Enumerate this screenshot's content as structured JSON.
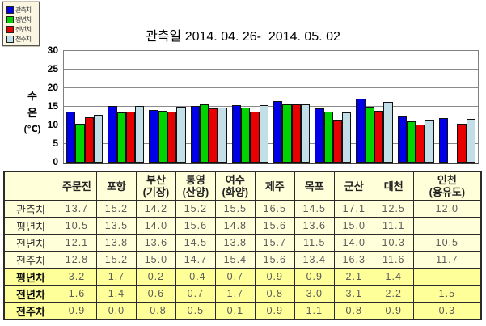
{
  "title": "관측일 2014. 04. 26-  2014. 05. 02",
  "y_axis": {
    "label_lines": [
      "수",
      "온",
      "(℃)"
    ],
    "ticks": [
      0,
      5,
      10,
      15,
      20,
      25,
      30
    ]
  },
  "legend": [
    {
      "label": "관측치",
      "color": "#0000e8"
    },
    {
      "label": "평년치",
      "color": "#00d400"
    },
    {
      "label": "전년치",
      "color": "#e80000"
    },
    {
      "label": "전주치",
      "color": "#c2dfe8"
    }
  ],
  "chart_data": {
    "type": "bar",
    "title": "관측일 2014. 04. 26-  2014. 05. 02",
    "ylabel": "수온(℃)",
    "ylim": [
      0,
      30
    ],
    "grid": true,
    "legend_position": "top-left",
    "categories": [
      "주문진",
      "포항",
      "부산(기장)",
      "통영(산양)",
      "여수(화양)",
      "제주",
      "목포",
      "군산",
      "대천",
      "인천(용유도)"
    ],
    "series": [
      {
        "name": "관측치",
        "color": "#0000e8",
        "values": [
          13.7,
          15.2,
          14.2,
          15.2,
          15.5,
          16.5,
          14.5,
          17.1,
          12.5,
          12.0
        ]
      },
      {
        "name": "평년치",
        "color": "#00d400",
        "values": [
          10.5,
          13.5,
          14.0,
          15.6,
          14.8,
          15.6,
          13.6,
          15.0,
          11.1,
          null
        ]
      },
      {
        "name": "전년치",
        "color": "#e80000",
        "values": [
          12.1,
          13.8,
          13.6,
          14.5,
          13.8,
          15.7,
          11.5,
          14.0,
          10.3,
          10.5
        ]
      },
      {
        "name": "전주치",
        "color": "#c2dfe8",
        "values": [
          12.8,
          15.2,
          15.0,
          14.7,
          15.4,
          15.6,
          13.4,
          16.3,
          11.6,
          11.7
        ]
      }
    ]
  },
  "table": {
    "corner": "",
    "columns": [
      "주문진",
      "포항",
      "부산\n(기장)",
      "통영\n(산양)",
      "여수\n(화양)",
      "제주",
      "목포",
      "군산",
      "대천",
      "인천\n(용유도)"
    ],
    "rows": [
      {
        "label": "관측치",
        "bold": false,
        "values": [
          "13.7",
          "15.2",
          "14.2",
          "15.2",
          "15.5",
          "16.5",
          "14.5",
          "17.1",
          "12.5",
          "12.0"
        ]
      },
      {
        "label": "평년치",
        "bold": false,
        "values": [
          "10.5",
          "13.5",
          "14.0",
          "15.6",
          "14.8",
          "15.6",
          "13.6",
          "15.0",
          "11.1",
          ""
        ]
      },
      {
        "label": "전년치",
        "bold": false,
        "values": [
          "12.1",
          "13.8",
          "13.6",
          "14.5",
          "13.8",
          "15.7",
          "11.5",
          "14.0",
          "10.3",
          "10.5"
        ]
      },
      {
        "label": "전주치",
        "bold": false,
        "values": [
          "12.8",
          "15.2",
          "15.0",
          "14.7",
          "15.4",
          "15.6",
          "13.4",
          "16.3",
          "11.6",
          "11.7"
        ]
      },
      {
        "label": "평년차",
        "bold": true,
        "values": [
          "3.2",
          "1.7",
          "0.2",
          "-0.4",
          "0.7",
          "0.9",
          "0.9",
          "2.1",
          "1.4",
          ""
        ]
      },
      {
        "label": "전년차",
        "bold": true,
        "values": [
          "1.6",
          "1.4",
          "0.6",
          "0.7",
          "1.7",
          "0.8",
          "3.0",
          "3.1",
          "2.2",
          "1.5"
        ]
      },
      {
        "label": "전주차",
        "bold": true,
        "values": [
          "0.9",
          "0.0",
          "-0.8",
          "0.5",
          "0.1",
          "0.9",
          "1.1",
          "0.8",
          "0.9",
          "0.3"
        ]
      }
    ]
  },
  "colors": {
    "header_bg": "#ffffd9",
    "diff_bg": "#ffff99",
    "gridline": "#8a8a8a",
    "plot_border": "#808080"
  }
}
